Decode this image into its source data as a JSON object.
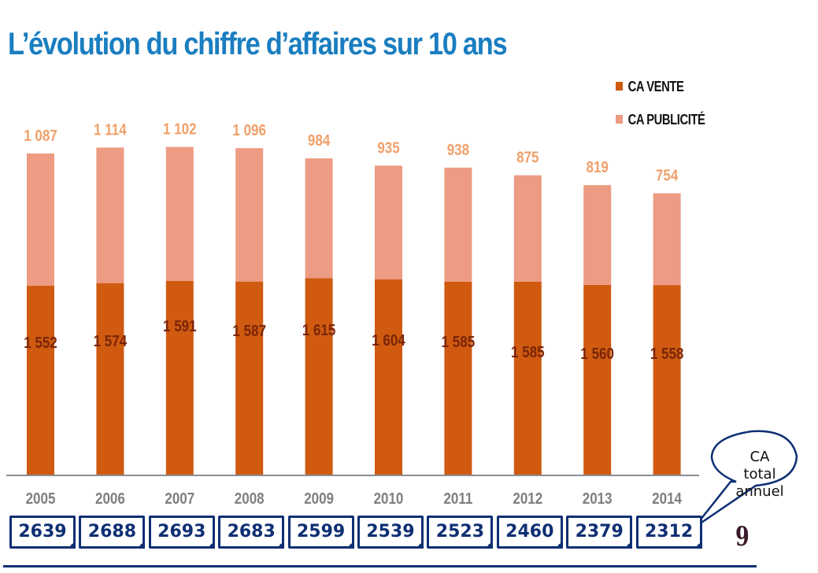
{
  "title": "L’évolution du chiffre d’affaires sur 10 ans",
  "colors": {
    "title": "#1a7ec0",
    "vente": "#cf5a10",
    "publicite": "#ed9b82",
    "vente_label": "#7a2508",
    "publicite_label": "#f0a06a",
    "year_label": "#7f7f7f",
    "totals": "#0e2f73"
  },
  "chart_data": {
    "type": "bar",
    "stacked": true,
    "title": "L’évolution du chiffre d’affaires sur 10 ans",
    "xlabel": "",
    "ylabel": "",
    "categories": [
      "2005",
      "2006",
      "2007",
      "2008",
      "2009",
      "2010",
      "2011",
      "2012",
      "2013",
      "2014"
    ],
    "series": [
      {
        "name": "CA VENTE",
        "values": [
          1552,
          1574,
          1591,
          1587,
          1615,
          1604,
          1585,
          1585,
          1560,
          1558
        ],
        "labels": [
          "1 552",
          "1 574",
          "1 591",
          "1 587",
          "1 615",
          "1 604",
          "1 585",
          "1 585",
          "1 560",
          "1 558"
        ]
      },
      {
        "name": "CA PUBLICITÉ",
        "values": [
          1087,
          1114,
          1102,
          1096,
          984,
          935,
          938,
          875,
          819,
          754
        ],
        "labels": [
          "1 087",
          "1 114",
          "1 102",
          "1 096",
          "984",
          "935",
          "938",
          "875",
          "819",
          "754"
        ]
      }
    ],
    "ylim": [
      0,
      2700
    ],
    "grid": false,
    "legend_position": "top-right",
    "totals": {
      "label": "CA total annuel",
      "values": [
        "2639",
        "2688",
        "2693",
        "2683",
        "2599",
        "2539",
        "2523",
        "2460",
        "2379",
        "2312"
      ]
    }
  },
  "legend": {
    "vente": "CA VENTE",
    "publicite": "CA PUBLICITÉ"
  },
  "callout": {
    "line1": "CA",
    "line2": "total",
    "line3": "annuel"
  },
  "page_number": "9"
}
